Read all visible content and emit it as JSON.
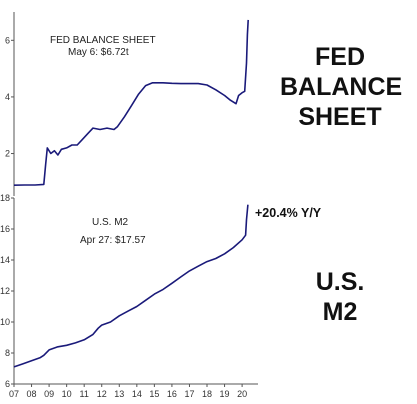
{
  "side_titles": {
    "fed": [
      "FED",
      "BALANCE",
      "SHEET"
    ],
    "m2": [
      "U.S.",
      "M2"
    ]
  },
  "colors": {
    "line": "#1a1a7a",
    "axis": "#555555",
    "text": "#222222"
  },
  "chart_data": [
    {
      "type": "line",
      "title": "FED BALANCE SHEET",
      "subtitle": "May 6: $6.72t",
      "xlabel": "",
      "ylabel": "",
      "xlim": [
        2007.0,
        2020.45
      ],
      "ylim": [
        0.5,
        7.0
      ],
      "yticks": [
        2,
        4,
        6
      ],
      "grid": false,
      "series": [
        {
          "x": [
            2007.0,
            2007.6,
            2008.2,
            2008.7,
            2008.8,
            2008.9,
            2009.1,
            2009.3,
            2009.5,
            2009.7,
            2010.0,
            2010.3,
            2010.6,
            2010.9,
            2011.2,
            2011.5,
            2011.9,
            2012.3,
            2012.7,
            2012.9,
            2013.3,
            2013.7,
            2014.1,
            2014.5,
            2014.9,
            2015.5,
            2016.0,
            2016.5,
            2017.0,
            2017.5,
            2018.0,
            2018.5,
            2019.0,
            2019.3,
            2019.55,
            2019.65,
            2019.8,
            2020.0,
            2020.15,
            2020.25,
            2020.3,
            2020.35
          ],
          "values": [
            0.88,
            0.89,
            0.89,
            0.91,
            1.6,
            2.2,
            2.0,
            2.1,
            1.95,
            2.15,
            2.2,
            2.3,
            2.3,
            2.5,
            2.7,
            2.9,
            2.85,
            2.9,
            2.85,
            2.95,
            3.3,
            3.7,
            4.1,
            4.4,
            4.5,
            4.5,
            4.48,
            4.47,
            4.47,
            4.47,
            4.42,
            4.25,
            4.05,
            3.9,
            3.8,
            3.76,
            4.05,
            4.15,
            4.2,
            5.2,
            6.2,
            6.72
          ]
        }
      ]
    },
    {
      "type": "line",
      "title": "U.S. M2",
      "subtitle": "Apr 27: $17.57",
      "annotation": "+20.4% Y/Y",
      "xlabel": "",
      "ylabel": "",
      "xlim": [
        2007.0,
        2020.45
      ],
      "ylim": [
        6,
        18
      ],
      "yticks": [
        6,
        8,
        10,
        12,
        14,
        16,
        18
      ],
      "xticks": [
        "07",
        "08",
        "09",
        "10",
        "11",
        "12",
        "13",
        "14",
        "15",
        "16",
        "17",
        "18",
        "19",
        "20"
      ],
      "grid": false,
      "series": [
        {
          "x": [
            2007.0,
            2007.5,
            2008.0,
            2008.5,
            2008.7,
            2009.0,
            2009.5,
            2010.0,
            2010.5,
            2011.0,
            2011.5,
            2011.8,
            2012.0,
            2012.5,
            2013.0,
            2013.5,
            2014.0,
            2014.5,
            2015.0,
            2015.5,
            2016.0,
            2016.5,
            2017.0,
            2017.5,
            2018.0,
            2018.5,
            2019.0,
            2019.5,
            2020.0,
            2020.2,
            2020.25,
            2020.33
          ],
          "values": [
            7.1,
            7.3,
            7.5,
            7.7,
            7.85,
            8.2,
            8.4,
            8.5,
            8.65,
            8.85,
            9.2,
            9.6,
            9.8,
            10.0,
            10.4,
            10.7,
            11.0,
            11.4,
            11.8,
            12.1,
            12.5,
            12.9,
            13.3,
            13.6,
            13.9,
            14.1,
            14.4,
            14.8,
            15.3,
            15.6,
            16.6,
            17.57
          ]
        }
      ]
    }
  ]
}
